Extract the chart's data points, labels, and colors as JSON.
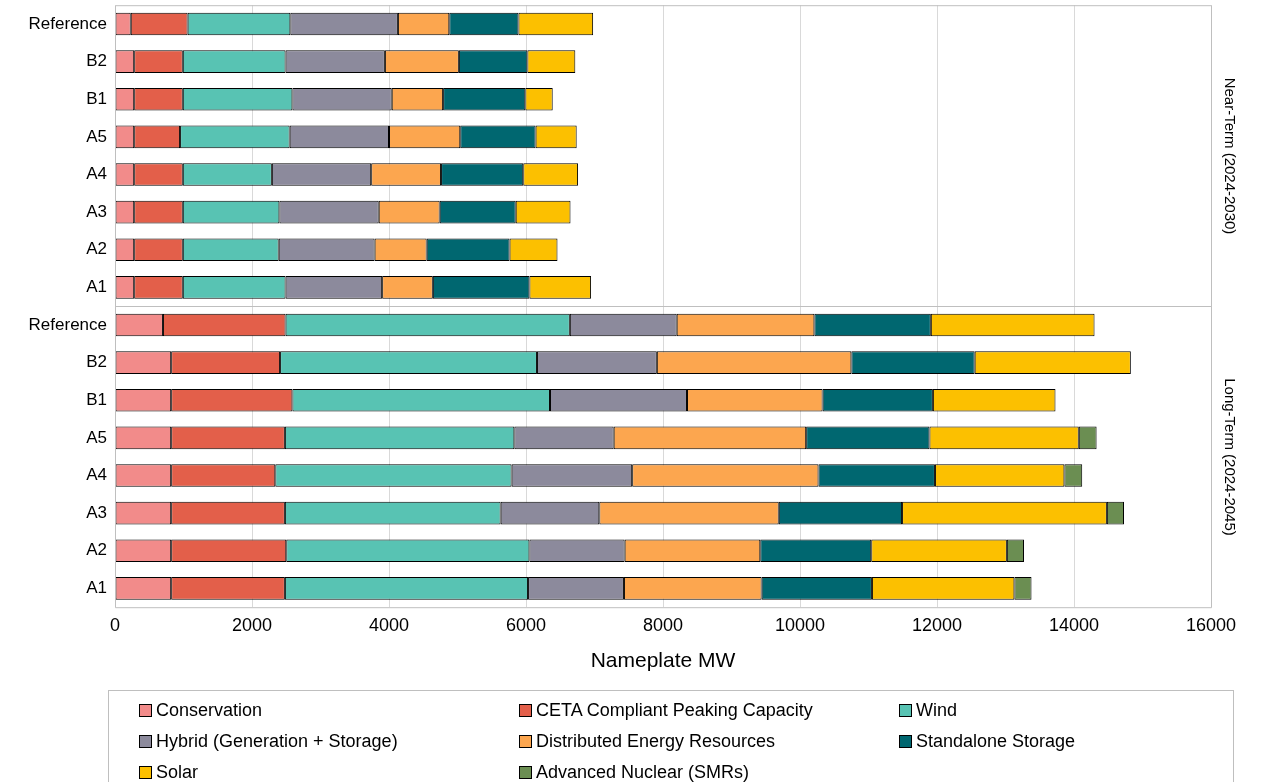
{
  "chart_data": {
    "type": "bar",
    "orientation": "horizontal",
    "stacked": true,
    "xlabel": "Nameplate MW",
    "annotations": [
      "Near-Term (2024-2030)",
      "Long-Term (2024-2045)"
    ],
    "categories": [
      "Reference",
      "B2",
      "B1",
      "A5",
      "A4",
      "A3",
      "A2",
      "A1",
      "Reference",
      "B2",
      "B1",
      "A5",
      "A4",
      "A3",
      "A2",
      "A1"
    ],
    "series": [
      {
        "name": "Conservation",
        "color": "#f28b8a",
        "values": [
          230,
          280,
          280,
          280,
          280,
          280,
          280,
          280,
          700,
          820,
          820,
          820,
          820,
          820,
          820,
          820
        ]
      },
      {
        "name": "CETA Compliant Peaking Capacity",
        "color": "#e35f4a",
        "values": [
          830,
          710,
          710,
          670,
          710,
          710,
          710,
          710,
          1790,
          1590,
          1770,
          1660,
          1520,
          1660,
          1680,
          1660
        ]
      },
      {
        "name": "Wind",
        "color": "#58c3b3",
        "values": [
          1500,
          1500,
          1600,
          1600,
          1300,
          1410,
          1400,
          1500,
          4150,
          3750,
          3760,
          3350,
          3450,
          3150,
          3550,
          3550
        ]
      },
      {
        "name": "Hybrid (Generation + Storage)",
        "color": "#8c8a9c",
        "values": [
          1570,
          1450,
          1450,
          1450,
          1450,
          1450,
          1400,
          1410,
          1560,
          1750,
          2000,
          1450,
          1760,
          1440,
          1390,
          1400
        ]
      },
      {
        "name": "Distributed Energy Resources",
        "color": "#fca64f",
        "values": [
          750,
          1080,
          750,
          1040,
          1020,
          890,
          760,
          740,
          2010,
          2840,
          1980,
          2810,
          2720,
          2620,
          1980,
          2010
        ]
      },
      {
        "name": "Standalone Storage",
        "color": "#006770",
        "values": [
          1010,
          1000,
          1200,
          1100,
          1200,
          1110,
          1210,
          1410,
          1700,
          1800,
          1610,
          1800,
          1700,
          1800,
          1620,
          1610
        ]
      },
      {
        "name": "Solar",
        "color": "#fcc000",
        "values": [
          1090,
          700,
          400,
          600,
          800,
          800,
          700,
          900,
          2390,
          2280,
          1790,
          2180,
          1890,
          2990,
          1980,
          2080
        ]
      },
      {
        "name": "Advanced Nuclear (SMRs)",
        "color": "#6b8e52",
        "values": [
          null,
          null,
          null,
          null,
          null,
          null,
          null,
          null,
          null,
          null,
          null,
          260,
          260,
          250,
          250,
          250
        ]
      }
    ],
    "xlim": [
      0,
      16000
    ],
    "xticks": [
      0,
      2000,
      4000,
      6000,
      8000,
      10000,
      12000,
      14000,
      16000
    ],
    "grid": "x",
    "legend": "bottom"
  }
}
